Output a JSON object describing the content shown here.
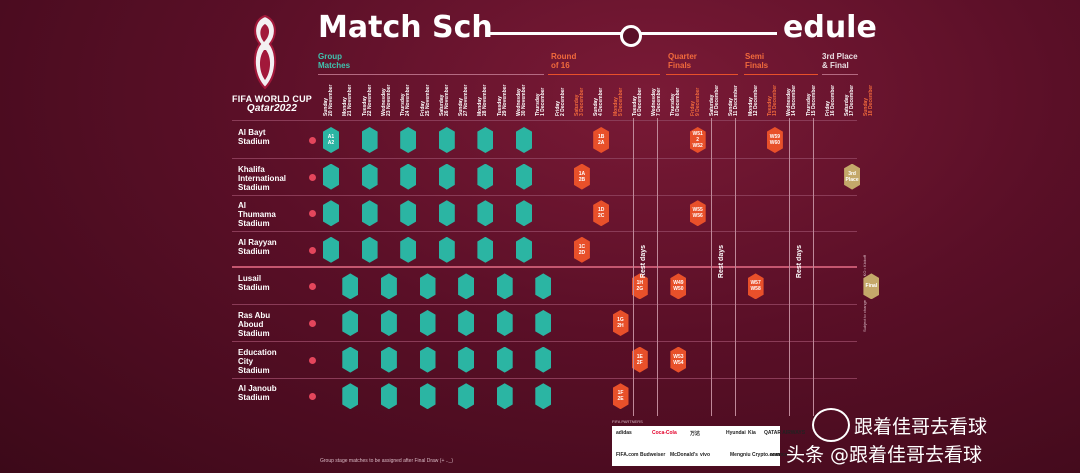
{
  "logo": {
    "line1": "FIFA WORLD CUP",
    "line2": "Qatar2022"
  },
  "title": {
    "left": "Match Sch",
    "right": "edule"
  },
  "stages": [
    {
      "label": "Group\nMatches",
      "color": "green"
    },
    {
      "label": "Round\nof 16",
      "color": "orange"
    },
    {
      "label": "Quarter\nFinals",
      "color": "orange"
    },
    {
      "label": "Semi\nFinals",
      "color": "orange"
    },
    {
      "label": "3rd Place\n& Final",
      "color": "white"
    }
  ],
  "dates": [
    {
      "t": "Sunday\n20 November",
      "hl": false
    },
    {
      "t": "Monday\n21 November",
      "hl": false
    },
    {
      "t": "Tuesday\n22 November",
      "hl": false
    },
    {
      "t": "Wednesday\n23 November",
      "hl": false
    },
    {
      "t": "Thursday\n24 November",
      "hl": false
    },
    {
      "t": "Friday\n25 November",
      "hl": false
    },
    {
      "t": "Saturday\n26 November",
      "hl": false
    },
    {
      "t": "Sunday\n27 November",
      "hl": false
    },
    {
      "t": "Monday\n28 November",
      "hl": false
    },
    {
      "t": "Tuesday\n29 November",
      "hl": false
    },
    {
      "t": "Wednesday\n30 November",
      "hl": false
    },
    {
      "t": "Thursday\n1 December",
      "hl": false
    },
    {
      "t": "Friday\n2 December",
      "hl": false
    },
    {
      "t": "Saturday\n3 December",
      "hl": true
    },
    {
      "t": "Sunday\n4 December",
      "hl": false
    },
    {
      "t": "Monday\n5 December",
      "hl": true
    },
    {
      "t": "Tuesday\n6 December",
      "hl": false
    },
    {
      "t": "Wednesday\n7 December",
      "hl": false
    },
    {
      "t": "Thursday\n8 December",
      "hl": false
    },
    {
      "t": "Friday\n9 December",
      "hl": true
    },
    {
      "t": "Saturday\n10 December",
      "hl": false
    },
    {
      "t": "Sunday\n11 December",
      "hl": false
    },
    {
      "t": "Monday\n12 December",
      "hl": false
    },
    {
      "t": "Tuesday\n13 December",
      "hl": true
    },
    {
      "t": "Wednesday\n14 December",
      "hl": false
    },
    {
      "t": "Thursday\n15 December",
      "hl": false
    },
    {
      "t": "Friday\n16 December",
      "hl": false
    },
    {
      "t": "Saturday\n17 December",
      "hl": false
    },
    {
      "t": "Sunday\n18 December",
      "hl": true
    }
  ],
  "stadiums": [
    "Al Bayt\nStadium",
    "Khalifa\nInternational\nStadium",
    "Al\nThumama\nStadium",
    "Al Rayyan\nStadium",
    "Lusail\nStadium",
    "Ras Abu\nAboud\nStadium",
    "Education\nCity\nStadium",
    "Al Janoub\nStadium"
  ],
  "knockouts": [
    {
      "row": 0,
      "col": 14,
      "t": "1B\n2A",
      "c": "orange"
    },
    {
      "row": 0,
      "col": 19,
      "t": "W51\n2\nW52",
      "c": "orange"
    },
    {
      "row": 0,
      "col": 23,
      "t": "W59\nW60",
      "c": "orange"
    },
    {
      "row": 1,
      "col": 13,
      "t": "1A\n2B",
      "c": "orange"
    },
    {
      "row": 1,
      "col": 27,
      "t": "3rd\nPlace",
      "c": "gold"
    },
    {
      "row": 2,
      "col": 14,
      "t": "1D\n2C",
      "c": "orange"
    },
    {
      "row": 2,
      "col": 19,
      "t": "W55\nW56",
      "c": "orange"
    },
    {
      "row": 3,
      "col": 13,
      "t": "1C\n2D",
      "c": "orange"
    },
    {
      "row": 4,
      "col": 16,
      "t": "1H\n2G",
      "c": "orange"
    },
    {
      "row": 4,
      "col": 18,
      "t": "W49\nW50",
      "c": "orange"
    },
    {
      "row": 4,
      "col": 22,
      "t": "W57\nW58",
      "c": "orange"
    },
    {
      "row": 4,
      "col": 28,
      "t": "Final",
      "c": "gold"
    },
    {
      "row": 5,
      "col": 15,
      "t": "1G\n2H",
      "c": "orange"
    },
    {
      "row": 6,
      "col": 16,
      "t": "1E\n2F",
      "c": "orange"
    },
    {
      "row": 6,
      "col": 18,
      "t": "W53\nW54",
      "c": "orange"
    },
    {
      "row": 7,
      "col": 15,
      "t": "1F\n2E",
      "c": "orange"
    }
  ],
  "rest_label": "Rest days",
  "group_first_hex": {
    "line1": "A1",
    "line2": "A2"
  },
  "footer_note": "Group stage matches to be assigned after Final Draw (+ .._)",
  "side_note_1": "Subject to change",
  "side_note_2": "KO • Kickoff",
  "sponsors": [
    "adidas",
    "Coca-Cola",
    "万达",
    "Hyundai",
    "Kia",
    "QATAR AIRWAYS",
    "aramco",
    "FIFA.com",
    "Budweiser",
    "McDonald's",
    "vivo",
    "Mengniu",
    "Crypto.com"
  ],
  "sponsors_header": "FIFA PARTNERS",
  "watermark1": "跟着佳哥去看球",
  "watermark2": "头条 @跟着佳哥去看球"
}
